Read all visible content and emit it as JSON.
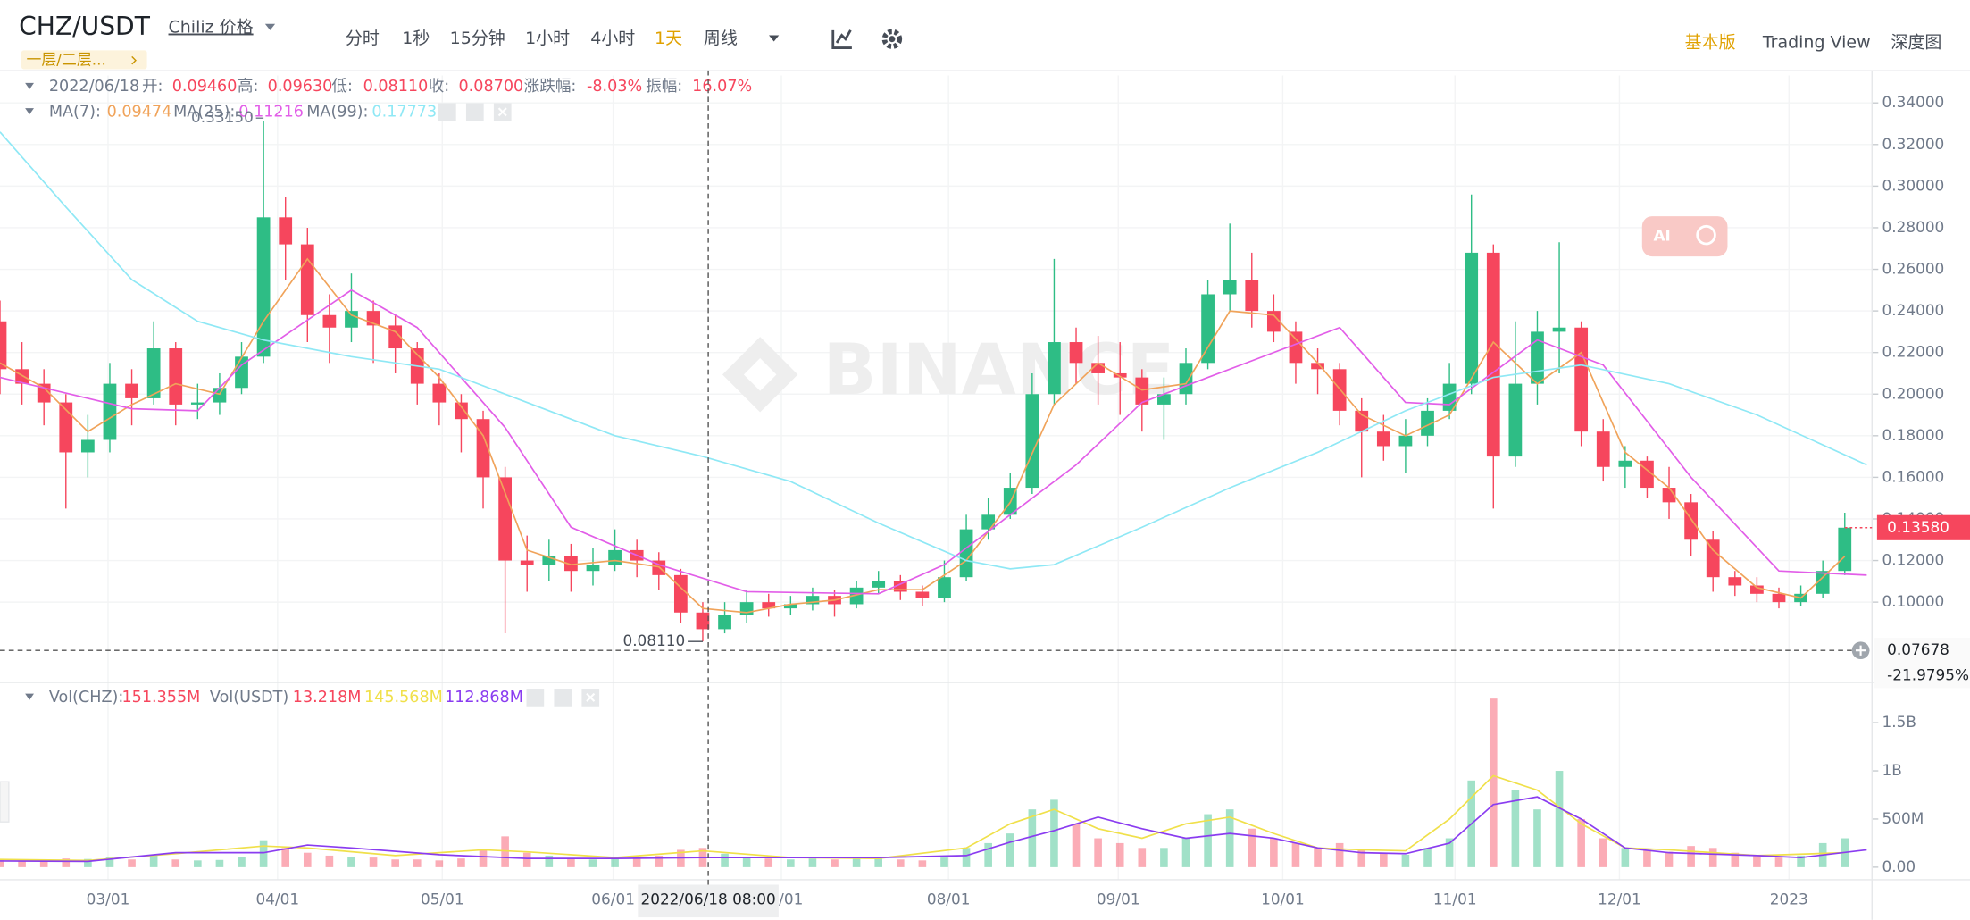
{
  "header": {
    "pair": "CHZ/USDT",
    "name": "Chiliz 价格",
    "tag": "一层/二层...",
    "intervals": [
      "分时",
      "1秒",
      "15分钟",
      "1小时",
      "4小时",
      "1天",
      "周线"
    ],
    "views": [
      "基本版",
      "Trading View",
      "深度图"
    ],
    "ai_button": "AI"
  },
  "info": {
    "date": "2022/06/18",
    "ohlc": [
      [
        "开:",
        "0.09460"
      ],
      [
        "高:",
        "0.09630"
      ],
      [
        "低:",
        "0.08110"
      ],
      [
        "收:",
        "0.08700"
      ],
      [
        "涨跌幅:",
        "-8.03%"
      ],
      [
        "振幅:",
        "16.07%"
      ]
    ],
    "ma": [
      [
        "MA(7):",
        "0.09474"
      ],
      [
        "MA(25):",
        "0.11216"
      ],
      [
        "MA(99):",
        "0.17773"
      ]
    ],
    "vol": [
      [
        "Vol(CHZ):",
        "151.355M"
      ],
      [
        "Vol(USDT)",
        "13.218M"
      ]
    ],
    "vol_ma": [
      "145.568M",
      "112.868M"
    ]
  },
  "chart_data": [
    {
      "type": "candlestick",
      "up_color": "#2ebd85",
      "down_color": "#f6465d",
      "grid": true,
      "open": [
        0.235,
        0.212,
        0.205,
        0.196,
        0.172,
        0.178,
        0.205,
        0.198,
        0.222,
        0.195,
        0.196,
        0.203,
        0.218,
        0.285,
        0.272,
        0.238,
        0.232,
        0.24,
        0.233,
        0.222,
        0.205,
        0.196,
        0.188,
        0.16,
        0.12,
        0.118,
        0.122,
        0.115,
        0.118,
        0.125,
        0.12,
        0.113,
        0.095,
        0.087,
        0.094,
        0.1,
        0.097,
        0.099,
        0.103,
        0.099,
        0.107,
        0.11,
        0.105,
        0.102,
        0.112,
        0.135,
        0.142,
        0.155,
        0.2,
        0.225,
        0.215,
        0.21,
        0.208,
        0.195,
        0.2,
        0.215,
        0.248,
        0.255,
        0.24,
        0.23,
        0.215,
        0.212,
        0.192,
        0.182,
        0.175,
        0.18,
        0.192,
        0.205,
        0.268,
        0.17,
        0.205,
        0.23,
        0.232,
        0.182,
        0.165,
        0.168,
        0.155,
        0.148,
        0.13,
        0.112,
        0.108,
        0.104,
        0.1,
        0.104,
        0.115
      ],
      "high": [
        0.245,
        0.225,
        0.212,
        0.2,
        0.19,
        0.215,
        0.212,
        0.235,
        0.225,
        0.205,
        0.21,
        0.225,
        0.3315,
        0.295,
        0.28,
        0.248,
        0.258,
        0.245,
        0.238,
        0.225,
        0.21,
        0.2,
        0.192,
        0.165,
        0.132,
        0.13,
        0.128,
        0.126,
        0.135,
        0.13,
        0.124,
        0.116,
        0.1,
        0.1,
        0.106,
        0.104,
        0.103,
        0.107,
        0.106,
        0.11,
        0.115,
        0.113,
        0.108,
        0.12,
        0.142,
        0.15,
        0.162,
        0.21,
        0.265,
        0.232,
        0.228,
        0.225,
        0.212,
        0.208,
        0.222,
        0.255,
        0.282,
        0.268,
        0.248,
        0.235,
        0.222,
        0.215,
        0.198,
        0.19,
        0.188,
        0.198,
        0.215,
        0.296,
        0.272,
        0.235,
        0.24,
        0.273,
        0.235,
        0.188,
        0.175,
        0.17,
        0.165,
        0.152,
        0.134,
        0.115,
        0.112,
        0.107,
        0.108,
        0.12,
        0.143
      ],
      "low": [
        0.2,
        0.195,
        0.185,
        0.145,
        0.16,
        0.172,
        0.185,
        0.195,
        0.185,
        0.188,
        0.19,
        0.2,
        0.215,
        0.255,
        0.225,
        0.215,
        0.225,
        0.215,
        0.21,
        0.195,
        0.185,
        0.172,
        0.145,
        0.085,
        0.105,
        0.11,
        0.105,
        0.108,
        0.115,
        0.112,
        0.106,
        0.09,
        0.0811,
        0.085,
        0.09,
        0.093,
        0.094,
        0.096,
        0.093,
        0.097,
        0.104,
        0.101,
        0.098,
        0.1,
        0.11,
        0.13,
        0.14,
        0.152,
        0.195,
        0.205,
        0.195,
        0.19,
        0.182,
        0.178,
        0.195,
        0.212,
        0.24,
        0.232,
        0.225,
        0.205,
        0.2,
        0.185,
        0.16,
        0.168,
        0.162,
        0.175,
        0.188,
        0.2,
        0.145,
        0.165,
        0.195,
        0.21,
        0.175,
        0.158,
        0.155,
        0.15,
        0.14,
        0.122,
        0.105,
        0.103,
        0.1,
        0.097,
        0.098,
        0.102,
        0.113
      ],
      "close": [
        0.212,
        0.205,
        0.196,
        0.172,
        0.178,
        0.205,
        0.198,
        0.222,
        0.195,
        0.196,
        0.203,
        0.218,
        0.285,
        0.272,
        0.238,
        0.232,
        0.24,
        0.233,
        0.222,
        0.205,
        0.196,
        0.188,
        0.16,
        0.12,
        0.118,
        0.122,
        0.115,
        0.118,
        0.125,
        0.12,
        0.113,
        0.095,
        0.087,
        0.094,
        0.1,
        0.097,
        0.099,
        0.103,
        0.099,
        0.107,
        0.11,
        0.105,
        0.102,
        0.112,
        0.135,
        0.142,
        0.155,
        0.2,
        0.225,
        0.215,
        0.21,
        0.208,
        0.195,
        0.2,
        0.215,
        0.248,
        0.255,
        0.24,
        0.23,
        0.215,
        0.212,
        0.192,
        0.182,
        0.175,
        0.18,
        0.192,
        0.205,
        0.268,
        0.17,
        0.205,
        0.23,
        0.232,
        0.182,
        0.165,
        0.168,
        0.155,
        0.148,
        0.13,
        0.112,
        0.108,
        0.104,
        0.1,
        0.104,
        0.115,
        0.1358
      ],
      "xlim": [
        0,
        85.24
      ],
      "xticks": [
        {
          "value": 4.92,
          "label": "03/01"
        },
        {
          "value": 12.64,
          "label": "04/01"
        },
        {
          "value": 20.14,
          "label": "05/01"
        },
        {
          "value": 27.92,
          "label": "06/01"
        },
        {
          "value": 35.58,
          "label": "07/01"
        },
        {
          "value": 43.19,
          "label": "08/01"
        },
        {
          "value": 50.92,
          "label": "09/01"
        },
        {
          "value": 58.41,
          "label": "10/01"
        },
        {
          "value": 66.25,
          "label": "11/01"
        },
        {
          "value": 73.74,
          "label": "12/01"
        },
        {
          "value": 81.46,
          "label": "2023"
        }
      ],
      "ylim": [
        0.0614,
        0.3532
      ],
      "yticks": [
        {
          "value": 0.1,
          "label": "0.10000"
        },
        {
          "value": 0.12,
          "label": "0.12000"
        },
        {
          "value": 0.14,
          "label": "0.14000"
        },
        {
          "value": 0.16,
          "label": "0.16000"
        },
        {
          "value": 0.18,
          "label": "0.18000"
        },
        {
          "value": 0.2,
          "label": "0.20000"
        },
        {
          "value": 0.22,
          "label": "0.22000"
        },
        {
          "value": 0.24,
          "label": "0.24000"
        },
        {
          "value": 0.26,
          "label": "0.26000"
        },
        {
          "value": 0.28,
          "label": "0.28000"
        },
        {
          "value": 0.3,
          "label": "0.30000"
        },
        {
          "value": 0.32,
          "label": "0.32000"
        },
        {
          "value": 0.34,
          "label": "0.34000"
        }
      ],
      "series": [
        {
          "color": "#f0a35a",
          "x": [
            0,
            2,
            4,
            6,
            8,
            10,
            12,
            14,
            16,
            18,
            20,
            22,
            24,
            26,
            28,
            30,
            32,
            34,
            36,
            38,
            40,
            42,
            44,
            46,
            48,
            50,
            52,
            54,
            56,
            58,
            60,
            62,
            64,
            66,
            68,
            70,
            72,
            74,
            76,
            78,
            80,
            82,
            84
          ],
          "values": [
            0.215,
            0.203,
            0.182,
            0.195,
            0.205,
            0.2,
            0.235,
            0.265,
            0.238,
            0.23,
            0.208,
            0.18,
            0.125,
            0.118,
            0.12,
            0.117,
            0.097,
            0.095,
            0.099,
            0.101,
            0.106,
            0.106,
            0.12,
            0.148,
            0.195,
            0.215,
            0.202,
            0.205,
            0.24,
            0.238,
            0.215,
            0.19,
            0.18,
            0.19,
            0.225,
            0.205,
            0.22,
            0.172,
            0.155,
            0.125,
            0.107,
            0.102,
            0.122
          ]
        },
        {
          "color": "#e25ee8",
          "x": [
            0,
            6,
            9,
            11,
            16,
            19,
            23,
            26,
            30,
            34,
            40,
            43,
            49,
            52,
            55,
            61,
            64,
            66,
            70,
            73,
            77,
            81,
            85
          ],
          "values": [
            0.208,
            0.193,
            0.192,
            0.214,
            0.25,
            0.232,
            0.184,
            0.136,
            0.118,
            0.105,
            0.104,
            0.118,
            0.166,
            0.196,
            0.208,
            0.232,
            0.196,
            0.195,
            0.226,
            0.214,
            0.16,
            0.115,
            0.113
          ]
        },
        {
          "color": "#8fe8f5",
          "x": [
            0,
            3,
            6,
            9,
            12,
            16,
            20,
            24,
            28,
            32,
            36,
            40,
            44,
            46,
            48,
            52,
            56,
            60,
            64,
            68,
            72,
            76,
            80,
            85
          ],
          "values": [
            0.326,
            0.29,
            0.255,
            0.235,
            0.226,
            0.218,
            0.212,
            0.196,
            0.18,
            0.17,
            0.158,
            0.138,
            0.12,
            0.116,
            0.118,
            0.136,
            0.155,
            0.172,
            0.192,
            0.208,
            0.214,
            0.205,
            0.19,
            0.166
          ]
        }
      ],
      "last_price_label": "0.13580",
      "max_label": "0.33150",
      "min_label": "0.08110",
      "crosshair": {
        "value": 0.07678,
        "change": "-21.9795%",
        "date": "2022/06/18 08:00"
      },
      "watermark": "BINANCE"
    },
    {
      "type": "bar",
      "values": [
        80,
        70,
        75,
        90,
        85,
        100,
        80,
        130,
        80,
        70,
        75,
        110,
        280,
        200,
        150,
        120,
        110,
        100,
        80,
        80,
        70,
        90,
        180,
        320,
        150,
        120,
        90,
        80,
        90,
        100,
        120,
        180,
        200,
        140,
        100,
        90,
        80,
        90,
        80,
        90,
        100,
        80,
        70,
        100,
        200,
        250,
        350,
        600,
        700,
        450,
        300,
        250,
        200,
        200,
        300,
        550,
        600,
        400,
        300,
        250,
        200,
        250,
        180,
        150,
        130,
        200,
        300,
        900,
        1750,
        800,
        600,
        1000,
        500,
        300,
        200,
        180,
        160,
        220,
        200,
        150,
        120,
        100,
        120,
        250,
        300
      ],
      "xlim": [
        0,
        85.24
      ],
      "ylim": [
        -130,
        1892
      ],
      "yticks": [
        {
          "value": 0,
          "label": "0.00"
        },
        {
          "value": 500,
          "label": "500M"
        },
        {
          "value": 1000,
          "label": "1B"
        },
        {
          "value": 1500,
          "label": "1.5B"
        }
      ],
      "series": [
        {
          "color": "#f0e04a",
          "x": [
            0,
            4,
            8,
            12,
            14,
            18,
            22,
            24,
            28,
            32,
            36,
            40,
            44,
            46,
            48,
            50,
            52,
            54,
            56,
            58,
            60,
            62,
            64,
            66,
            68,
            70,
            72,
            74,
            76,
            80,
            84
          ],
          "values": [
            80,
            70,
            140,
            220,
            200,
            120,
            180,
            160,
            100,
            170,
            100,
            90,
            200,
            450,
            600,
            400,
            300,
            450,
            520,
            350,
            200,
            180,
            170,
            500,
            950,
            800,
            450,
            200,
            180,
            120,
            150
          ]
        },
        {
          "color": "#8a3cf0",
          "x": [
            0,
            4,
            8,
            12,
            14,
            16,
            20,
            24,
            28,
            32,
            36,
            40,
            44,
            46,
            48,
            50,
            52,
            54,
            56,
            58,
            60,
            62,
            64,
            66,
            68,
            70,
            72,
            74,
            76,
            80,
            82,
            85
          ],
          "values": [
            65,
            60,
            150,
            150,
            230,
            200,
            130,
            90,
            90,
            100,
            100,
            100,
            120,
            260,
            380,
            520,
            400,
            300,
            350,
            300,
            200,
            150,
            140,
            250,
            650,
            730,
            500,
            200,
            150,
            120,
            100,
            180
          ]
        }
      ]
    }
  ]
}
